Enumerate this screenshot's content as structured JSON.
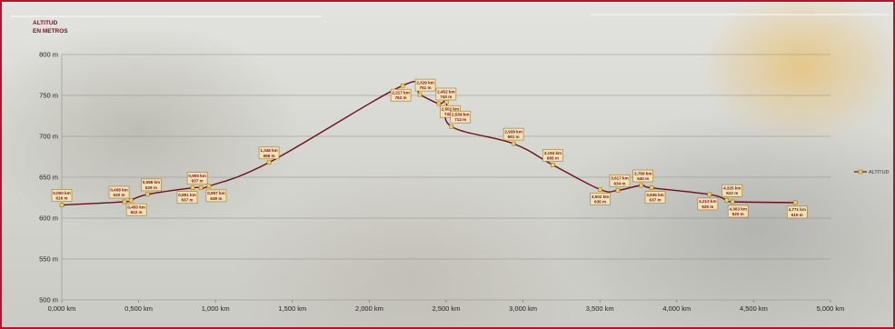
{
  "chart_data": {
    "type": "line",
    "ylabel": "ALTITUD\nEN METROS",
    "x_unit": "km",
    "y_unit": "m",
    "xlim": [
      0,
      5
    ],
    "ylim": [
      500,
      800
    ],
    "x_ticks": [
      "0,000 km",
      "0,500 km",
      "1,000 km",
      "1,500 km",
      "2,000 km",
      "2,500 km",
      "3,000 km",
      "3,500 km",
      "4,000 km",
      "4,500 km",
      "5,000 km"
    ],
    "y_ticks": [
      "800 m",
      "750 m",
      "700 m",
      "650 m",
      "600 m",
      "550 m",
      "500 m"
    ],
    "grid": true,
    "legend_position": "right",
    "series": [
      {
        "name": "ALTITUD",
        "color": "#6b0f1a",
        "marker_color": "#f2d15c",
        "x": [
          0.0,
          0.408,
          0.45,
          0.558,
          0.851,
          0.905,
          0.957,
          1.348,
          2.217,
          2.329,
          2.452,
          2.502,
          2.534,
          2.938,
          3.194,
          3.502,
          3.617,
          3.769,
          3.836,
          4.213,
          4.325,
          4.363,
          4.771
        ],
        "y": [
          616,
          620,
          622,
          629,
          637,
          637,
          639,
          668,
          762,
          751,
          740,
          742,
          712,
          691,
          665,
          635,
          634,
          640,
          637,
          629,
          622,
          620,
          619
        ],
        "labels": [
          [
            "0,000 km",
            "616 m"
          ],
          [
            "0,408 km",
            "620 m"
          ],
          [
            "0,450 km",
            "622 m"
          ],
          [
            "0,558 km",
            "629 m"
          ],
          [
            "0,851 km",
            "637 m"
          ],
          [
            "0,905 km",
            "637 m"
          ],
          [
            "0,957 km",
            "639 m"
          ],
          [
            "1,348 km",
            "668 m"
          ],
          [
            "2,217 km",
            "762 m"
          ],
          [
            "2,329 km",
            "751 m"
          ],
          [
            "2,452 km",
            "740 m"
          ],
          [
            "2,502 km",
            "742 m"
          ],
          [
            "2,534 km",
            "712 m"
          ],
          [
            "2,938 km",
            "691 m"
          ],
          [
            "3,194 km",
            "665 m"
          ],
          [
            "3,502 km",
            "635 m"
          ],
          [
            "3,617 km",
            "634 m"
          ],
          [
            "3,769 km",
            "640 m"
          ],
          [
            "3,836 km",
            "637 m"
          ],
          [
            "4,213 km",
            "629 m"
          ],
          [
            "4,325 km",
            "622 m"
          ],
          [
            "4,363 km",
            "620 m"
          ],
          [
            "4,771 km",
            "619 m"
          ]
        ]
      }
    ]
  }
}
